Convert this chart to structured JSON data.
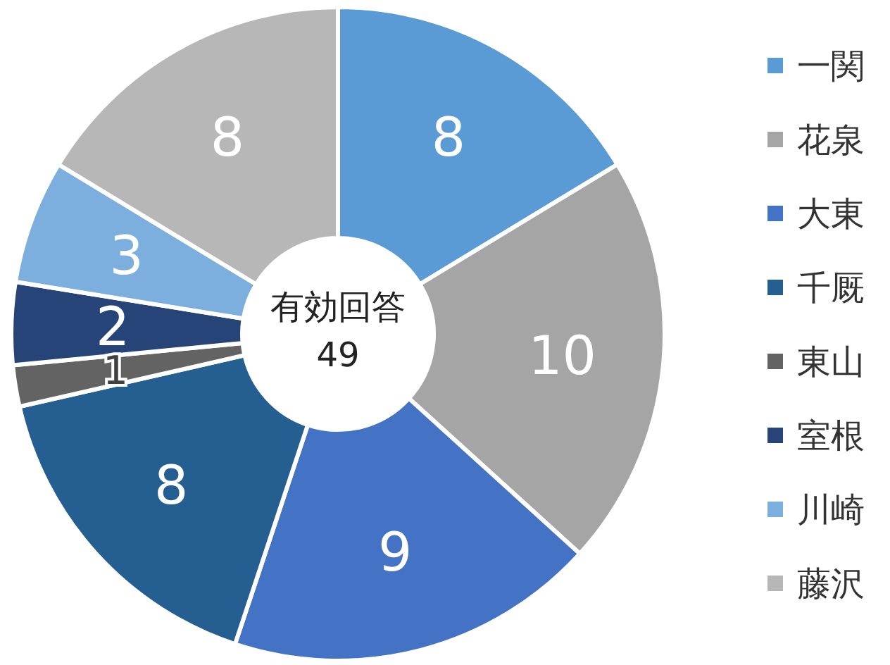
{
  "chart_data": {
    "type": "donut",
    "categories": [
      "一関",
      "花泉",
      "大東",
      "千厩",
      "東山",
      "室根",
      "川崎",
      "藤沢"
    ],
    "values": [
      8,
      10,
      9,
      8,
      1,
      2,
      3,
      8
    ],
    "colors": [
      "#5b9bd5",
      "#a5a5a5",
      "#4472c4",
      "#255e91",
      "#636363",
      "#264478",
      "#7cafdd",
      "#b7b7b7"
    ],
    "data_labels": true,
    "legend": "right",
    "annotations": [
      "有効回答",
      "49"
    ]
  }
}
